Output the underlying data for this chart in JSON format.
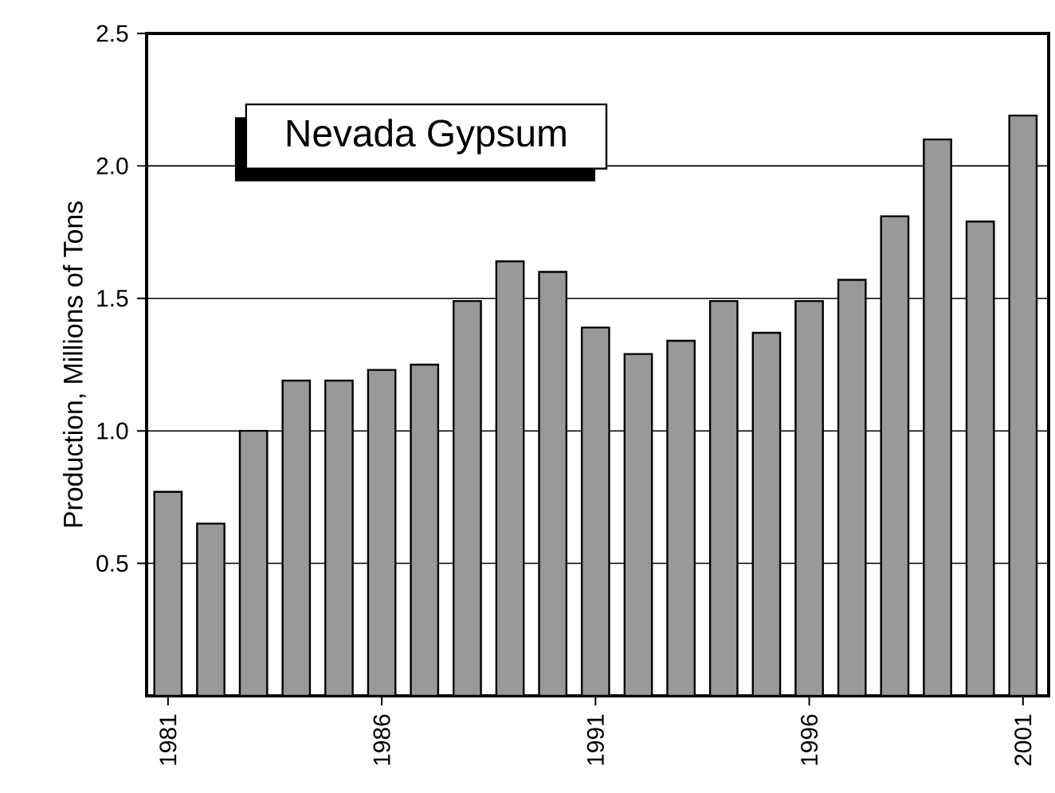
{
  "chart_data": {
    "type": "bar",
    "title": "Nevada  Gypsum",
    "ylabel": "Production,  Millions  of  Tons",
    "x": [
      1981,
      1982,
      1983,
      1984,
      1985,
      1986,
      1987,
      1988,
      1989,
      1990,
      1991,
      1992,
      1993,
      1994,
      1995,
      1996,
      1997,
      1998,
      1999,
      2000,
      2001
    ],
    "values": [
      0.77,
      0.65,
      1.0,
      1.19,
      1.19,
      1.23,
      1.25,
      1.49,
      1.64,
      1.6,
      1.39,
      1.29,
      1.34,
      1.49,
      1.37,
      1.49,
      1.57,
      1.81,
      2.1,
      1.79,
      2.19
    ],
    "color": "#999999",
    "xlim": [
      1980.5,
      2001.6
    ],
    "xticks": [
      1981,
      1986,
      1991,
      1996,
      2001
    ],
    "ylim": [
      0,
      2.5
    ],
    "yticks": [
      0.5,
      {
        "value": 1,
        "label": "1.0"
      },
      1.5,
      {
        "value": 2,
        "label": "2.0"
      },
      2.5
    ],
    "grid": "y"
  }
}
